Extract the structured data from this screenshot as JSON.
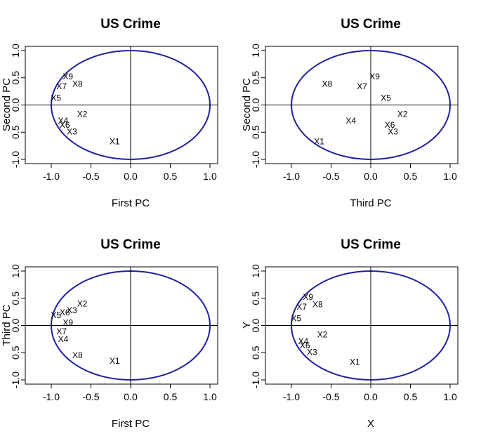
{
  "chart_data": [
    {
      "type": "scatter",
      "title": "US Crime",
      "xlabel": "First PC",
      "ylabel": "Second PC",
      "xlim": [
        -1.0,
        1.0
      ],
      "ylim": [
        -1.0,
        1.0
      ],
      "xticks": [
        "-1.0",
        "-0.5",
        "0.0",
        "0.5",
        "1.0"
      ],
      "yticks": [
        "-1.0",
        "0.5",
        "0.0",
        "0.5",
        "1.0"
      ],
      "circle": {
        "radius": 1.0,
        "color": "#1f1fa0"
      },
      "points": [
        {
          "label": "X9",
          "x": -0.79,
          "y": 0.52
        },
        {
          "label": "X8",
          "x": -0.67,
          "y": 0.39
        },
        {
          "label": "X7",
          "x": -0.87,
          "y": 0.34
        },
        {
          "label": "X5",
          "x": -0.94,
          "y": 0.13
        },
        {
          "label": "X2",
          "x": -0.61,
          "y": -0.17
        },
        {
          "label": "X4",
          "x": -0.85,
          "y": -0.29
        },
        {
          "label": "X6",
          "x": -0.83,
          "y": -0.37
        },
        {
          "label": "X3",
          "x": -0.74,
          "y": -0.49
        },
        {
          "label": "X1",
          "x": -0.2,
          "y": -0.67
        }
      ]
    },
    {
      "type": "scatter",
      "title": "US Crime",
      "xlabel": "Third PC",
      "ylabel": "Second PC",
      "xlim": [
        -1.0,
        1.0
      ],
      "ylim": [
        -1.0,
        1.0
      ],
      "xticks": [
        "-1.0",
        "-0.5",
        "0.0",
        "0.5",
        "1.0"
      ],
      "yticks": [
        "-1.0",
        "0.5",
        "0.0",
        "0.5",
        "1.0"
      ],
      "circle": {
        "radius": 1.0,
        "color": "#1f1fa0"
      },
      "points": [
        {
          "label": "X9",
          "x": 0.05,
          "y": 0.52
        },
        {
          "label": "X8",
          "x": -0.55,
          "y": 0.39
        },
        {
          "label": "X7",
          "x": -0.11,
          "y": 0.34
        },
        {
          "label": "X5",
          "x": 0.19,
          "y": 0.13
        },
        {
          "label": "X2",
          "x": 0.4,
          "y": -0.17
        },
        {
          "label": "X4",
          "x": -0.25,
          "y": -0.29
        },
        {
          "label": "X6",
          "x": 0.24,
          "y": -0.37
        },
        {
          "label": "X3",
          "x": 0.28,
          "y": -0.49
        },
        {
          "label": "X1",
          "x": -0.65,
          "y": -0.67
        }
      ]
    },
    {
      "type": "scatter",
      "title": "US Crime",
      "xlabel": "First PC",
      "ylabel": "Third PC",
      "xlim": [
        -1.0,
        1.0
      ],
      "ylim": [
        -1.0,
        1.0
      ],
      "xticks": [
        "-1.0",
        "-0.5",
        "0.0",
        "0.5",
        "1.0"
      ],
      "yticks": [
        "-1.0",
        "0.5",
        "0.0",
        "0.5",
        "1.0"
      ],
      "circle": {
        "radius": 1.0,
        "color": "#1f1fa0"
      },
      "points": [
        {
          "label": "X2",
          "x": -0.61,
          "y": 0.4
        },
        {
          "label": "X3",
          "x": -0.74,
          "y": 0.28
        },
        {
          "label": "X6",
          "x": -0.83,
          "y": 0.24
        },
        {
          "label": "X5",
          "x": -0.94,
          "y": 0.19
        },
        {
          "label": "X9",
          "x": -0.79,
          "y": 0.05
        },
        {
          "label": "X7",
          "x": -0.87,
          "y": -0.11
        },
        {
          "label": "X4",
          "x": -0.85,
          "y": -0.25
        },
        {
          "label": "X8",
          "x": -0.67,
          "y": -0.55
        },
        {
          "label": "X1",
          "x": -0.2,
          "y": -0.65
        }
      ]
    },
    {
      "type": "scatter",
      "title": "US Crime",
      "xlabel": "X",
      "ylabel": "Y",
      "xlim": [
        -1.0,
        1.0
      ],
      "ylim": [
        -1.0,
        1.0
      ],
      "xticks": [
        "-1.0",
        "-0.5",
        "0.0",
        "0.5",
        "1.0"
      ],
      "yticks": [
        "-1.0",
        "0.5",
        "0.0",
        "0.5",
        "1.0"
      ],
      "circle": {
        "radius": 1.0,
        "color": "#1f1fa0"
      },
      "points": [
        {
          "label": "X9",
          "x": -0.79,
          "y": 0.52
        },
        {
          "label": "X8",
          "x": -0.67,
          "y": 0.39
        },
        {
          "label": "X7",
          "x": -0.87,
          "y": 0.34
        },
        {
          "label": "X5",
          "x": -0.94,
          "y": 0.13
        },
        {
          "label": "X2",
          "x": -0.61,
          "y": -0.17
        },
        {
          "label": "X4",
          "x": -0.85,
          "y": -0.29
        },
        {
          "label": "X6",
          "x": -0.83,
          "y": -0.37
        },
        {
          "label": "X3",
          "x": -0.74,
          "y": -0.49
        },
        {
          "label": "X1",
          "x": -0.2,
          "y": -0.67
        }
      ]
    }
  ]
}
